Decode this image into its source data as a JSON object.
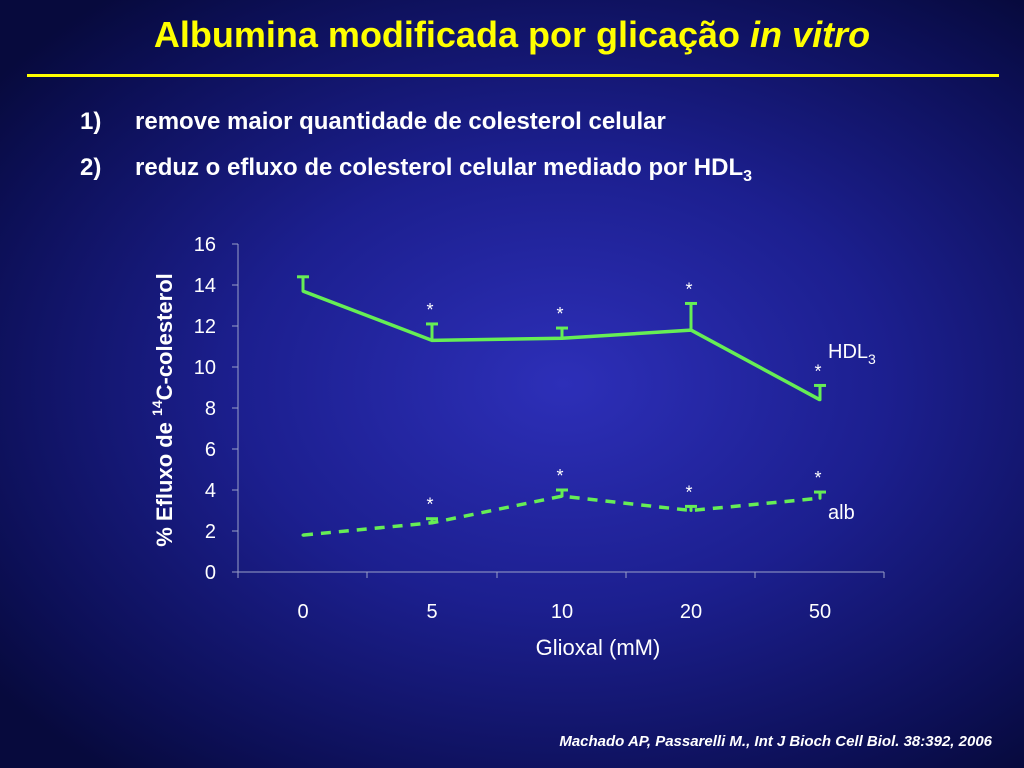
{
  "header": {
    "title_main": "Albumina modificada por glicação",
    "title_italic": "in vitro"
  },
  "bullets": [
    {
      "number": "1)",
      "text": "remove maior quantidade de colesterol celular",
      "sub": ""
    },
    {
      "number": "2)",
      "text": "reduz o efluxo de colesterol celular mediado por HDL",
      "sub": "3"
    }
  ],
  "chart_data": {
    "type": "line",
    "categories": [
      "0",
      "5",
      "10",
      "20",
      "50"
    ],
    "xlabel": "Glioxal (mM)",
    "ylabel_prefix": "% Efluxo de",
    "ylabel_superscript": "14",
    "ylabel_suffix": "C-colesterol",
    "ylim": [
      0,
      16
    ],
    "yticks": [
      0,
      2,
      4,
      6,
      8,
      10,
      12,
      14,
      16
    ],
    "grid": false,
    "series": [
      {
        "name": "HDL",
        "name_subscript": "3",
        "style": "solid",
        "values": [
          13.7,
          11.3,
          11.4,
          11.8,
          8.4
        ],
        "errors": [
          0.7,
          0.8,
          0.5,
          1.3,
          0.7
        ],
        "significance": [
          "",
          "*",
          "*",
          "*",
          "*"
        ]
      },
      {
        "name": "alb",
        "name_subscript": "",
        "style": "dashed",
        "values": [
          1.8,
          2.4,
          3.7,
          3.0,
          3.6
        ],
        "errors": [
          0.0,
          0.2,
          0.3,
          0.2,
          0.3
        ],
        "significance": [
          "",
          "*",
          "*",
          "*",
          "*"
        ]
      }
    ]
  },
  "colors": {
    "line": "#66ee55",
    "title": "#ffff00",
    "text": "#ffffff"
  },
  "footer": {
    "citation": "Machado AP, Passarelli M., Int J Bioch Cell Biol. 38:392, 2006"
  }
}
